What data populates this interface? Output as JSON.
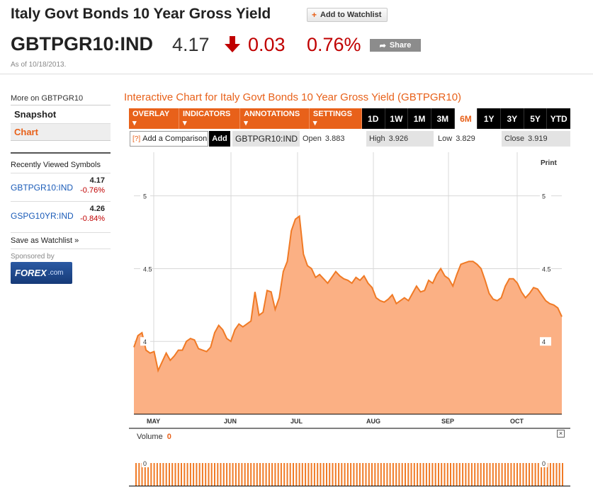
{
  "header": {
    "title": "Italy Govt Bonds 10 Year Gross Yield",
    "add_watchlist": "Add to Watchlist",
    "ticker": "GBTPGR10:IND",
    "price": "4.17",
    "change": "0.03",
    "change_pct": "0.76%",
    "share": "Share",
    "as_of": "As of 10/18/2013."
  },
  "sidebar": {
    "more_on": "More on GBTPGR10",
    "nav": [
      {
        "label": "Snapshot"
      },
      {
        "label": "Chart"
      }
    ],
    "recent_title": "Recently Viewed Symbols",
    "recent": [
      {
        "symbol": "GBTPGR10:IND",
        "value": "4.17",
        "change": "-0.76%"
      },
      {
        "symbol": "GSPG10YR:IND",
        "value": "4.26",
        "change": "-0.84%"
      }
    ],
    "save_watchlist": "Save as Watchlist »",
    "sponsored": "Sponsored by",
    "sponsor_logo": "FOREX",
    "sponsor_logo_suffix": ".com"
  },
  "chart": {
    "heading": "Interactive Chart for Italy Govt Bonds 10 Year Gross Yield (GBTPGR10)",
    "menus": [
      "OVERLAY ▾",
      "INDICATORS ▾",
      "ANNOTATIONS ▾",
      "SETTINGS ▾"
    ],
    "ranges": [
      "1D",
      "1W",
      "1M",
      "3M",
      "6M",
      "1Y",
      "3Y",
      "5Y",
      "YTD"
    ],
    "active_range": "6M",
    "compare_placeholder": "Add a Comparison",
    "compare_help": "[?]",
    "add_label": "Add",
    "symbol": "GBTPGR10:IND",
    "open_label": "Open",
    "open": "3.883",
    "high_label": "High",
    "high": "3.926",
    "low_label": "Low",
    "low": "3.829",
    "close_label": "Close",
    "close": "3.919",
    "print": "Print",
    "volume_label": "Volume",
    "volume_value": "0",
    "close_icon": "x-icon"
  },
  "chart_data": {
    "type": "area",
    "title": "",
    "xlabel": "",
    "ylabel": "",
    "ylim": [
      3.5,
      5.3
    ],
    "y_ticks": [
      4,
      4.5,
      5
    ],
    "x_tick_labels": [
      "MAY",
      "JUN",
      "JUL",
      "AUG",
      "SEP",
      "OCT"
    ],
    "colors": {
      "line": "#f07a25",
      "fill": "#fbb084"
    },
    "volume_ticks": [
      "0"
    ],
    "series": [
      {
        "values": [
          3.96,
          4.04,
          4.06,
          3.94,
          3.92,
          3.93,
          3.8,
          3.86,
          3.92,
          3.87,
          3.9,
          3.94,
          3.94,
          4.0,
          4.02,
          4.01,
          3.95,
          3.94,
          3.93,
          3.96,
          4.06,
          4.11,
          4.08,
          4.02,
          4.0,
          4.08,
          4.12,
          4.1,
          4.12,
          4.14,
          4.34,
          4.18,
          4.2,
          4.35,
          4.34,
          4.22,
          4.3,
          4.48,
          4.55,
          4.76,
          4.84,
          4.86,
          4.6,
          4.52,
          4.5,
          4.44,
          4.46,
          4.43,
          4.4,
          4.44,
          4.48,
          4.45,
          4.43,
          4.42,
          4.4,
          4.44,
          4.42,
          4.45,
          4.4,
          4.37,
          4.3,
          4.28,
          4.27,
          4.29,
          4.32,
          4.26,
          4.28,
          4.3,
          4.28,
          4.33,
          4.38,
          4.34,
          4.35,
          4.42,
          4.4,
          4.46,
          4.5,
          4.45,
          4.43,
          4.38,
          4.46,
          4.53,
          4.54,
          4.55,
          4.55,
          4.53,
          4.5,
          4.42,
          4.33,
          4.29,
          4.28,
          4.3,
          4.38,
          4.43,
          4.43,
          4.4,
          4.34,
          4.3,
          4.33,
          4.37,
          4.36,
          4.32,
          4.28,
          4.26,
          4.25,
          4.23,
          4.17
        ]
      }
    ]
  }
}
